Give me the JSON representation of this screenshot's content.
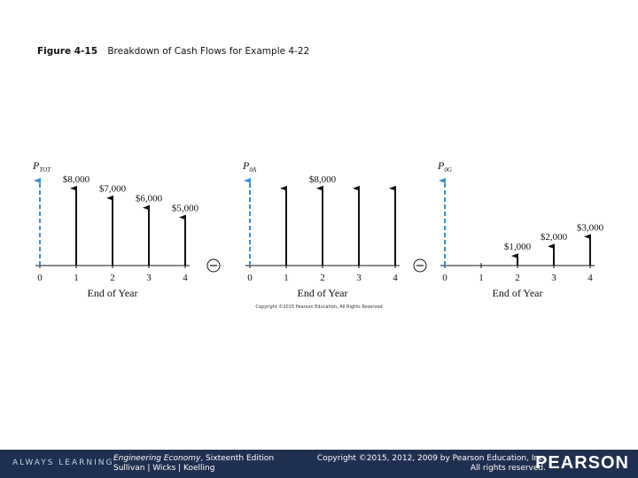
{
  "figure": {
    "number": "Figure 4-15",
    "caption": "Breakdown of Cash Flows for Example 4-22"
  },
  "copyright_small": "Copyright ©2015 Pearson Education, All Rights Reserved",
  "colors": {
    "present_worth_arrow": "#3a8fd6",
    "cash_flow_arrow": "#111111",
    "footer_bg": "#1f2f4f"
  },
  "panels": [
    {
      "pw_label": {
        "main": "P",
        "sub": "TOT"
      },
      "axis_label": "End of Year",
      "ticks": [
        "0",
        "1",
        "2",
        "3",
        "4"
      ],
      "cash_flows": [
        {
          "year": 1,
          "amount": 8000,
          "label": "$8,000"
        },
        {
          "year": 2,
          "amount": 7000,
          "label": "$7,000"
        },
        {
          "year": 3,
          "amount": 6000,
          "label": "$6,000"
        },
        {
          "year": 4,
          "amount": 5000,
          "label": "$5,000"
        }
      ],
      "operator_after": "minus"
    },
    {
      "pw_label": {
        "main": "P",
        "sub": "0A"
      },
      "axis_label": "End of Year",
      "ticks": [
        "0",
        "1",
        "2",
        "3",
        "4"
      ],
      "cash_flows": [
        {
          "year": 1,
          "amount": 8000,
          "label": ""
        },
        {
          "year": 2,
          "amount": 8000,
          "label": "$8,000"
        },
        {
          "year": 3,
          "amount": 8000,
          "label": ""
        },
        {
          "year": 4,
          "amount": 8000,
          "label": ""
        }
      ],
      "operator_after": "minus"
    },
    {
      "pw_label": {
        "main": "P",
        "sub": "0G"
      },
      "axis_label": "End of Year",
      "ticks": [
        "0",
        "1",
        "2",
        "3",
        "4"
      ],
      "cash_flows": [
        {
          "year": 1,
          "amount": 0,
          "label": ""
        },
        {
          "year": 2,
          "amount": 1000,
          "label": "$1,000"
        },
        {
          "year": 3,
          "amount": 2000,
          "label": "$2,000"
        },
        {
          "year": 4,
          "amount": 3000,
          "label": "$3,000"
        }
      ],
      "operator_after": ""
    }
  ],
  "footer": {
    "left": "ALWAYS LEARNING",
    "book_title": "Engineering Economy",
    "book_edition": ", Sixteenth Edition",
    "authors": "Sullivan | Wicks | Koelling",
    "copyright_line1": "Copyright ©2015, 2012, 2009 by Pearson Education, Inc.",
    "copyright_line2": "All rights reserved.",
    "logo": "PEARSON"
  }
}
